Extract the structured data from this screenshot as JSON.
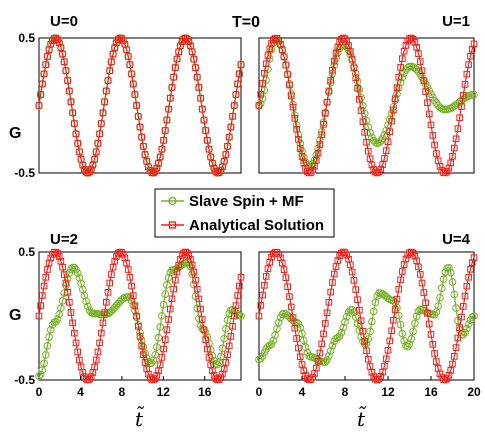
{
  "figure": {
    "ylabel": "G",
    "xlabel": "t̃",
    "annotation": "T=0",
    "legend": {
      "entries": [
        "Slave Spin + MF",
        "Analytical Solution"
      ]
    },
    "colors": {
      "slave_spin": "#77b02a",
      "analytical": "#e8241e"
    }
  },
  "chart_data": [
    {
      "type": "line",
      "title": "U=0",
      "ylabel": "G",
      "xlim": [
        0,
        19.5
      ],
      "ylim": [
        -0.5,
        0.5
      ],
      "yticks": [
        -0.5,
        0.5
      ],
      "ytick_labels": [
        "-0.5",
        "0.5"
      ],
      "xticks": [],
      "xtick_labels": [],
      "series": [
        {
          "name": "Slave Spin + MF",
          "analytic": "0.5*sin(t)",
          "mode": "exact"
        },
        {
          "name": "Analytical Solution",
          "analytic": "0.5*sin(t)"
        }
      ]
    },
    {
      "type": "line",
      "title": "U=1",
      "ylabel": "",
      "xlim": [
        0,
        20
      ],
      "ylim": [
        -0.5,
        0.5
      ],
      "yticks": [],
      "ytick_labels": [],
      "xticks": [],
      "xtick_labels": [],
      "series": [
        {
          "name": "Slave Spin + MF",
          "x": [
            0,
            1.57,
            4.71,
            7.85,
            11.0,
            14.1,
            17.3,
            20.0
          ],
          "y": [
            0,
            0.49,
            -0.45,
            0.45,
            -0.28,
            0.29,
            -0.03,
            0.08
          ]
        },
        {
          "name": "Analytical Solution",
          "analytic": "0.5*sin(t)"
        }
      ]
    },
    {
      "type": "line",
      "title": "U=2",
      "ylabel": "G",
      "xlim": [
        0,
        19.5
      ],
      "ylim": [
        -0.5,
        0.5
      ],
      "yticks": [
        -0.5,
        0.5
      ],
      "ytick_labels": [
        "-0.5",
        "0.5"
      ],
      "xticks": [
        0,
        4,
        8,
        12,
        16
      ],
      "xtick_labels": [
        "0",
        "4",
        "8",
        "12",
        "16"
      ],
      "series": [
        {
          "name": "Slave Spin + MF",
          "x": [
            0,
            1.5,
            3.3,
            5.2,
            6.3,
            8.6,
            10.8,
            12.9,
            14.4,
            15.8,
            17.2,
            18.6,
            19.5
          ],
          "y": [
            -0.47,
            -0.05,
            0.38,
            0.02,
            0.01,
            0.15,
            -0.37,
            0.36,
            0.42,
            -0.1,
            -0.38,
            0.05,
            0.0
          ]
        },
        {
          "name": "Analytical Solution",
          "analytic": "0.5*sin(t)"
        }
      ]
    },
    {
      "type": "line",
      "title": "U=4",
      "ylabel": "",
      "xlim": [
        0,
        20
      ],
      "ylim": [
        -0.5,
        0.5
      ],
      "yticks": [],
      "ytick_labels": [],
      "xticks": [
        0,
        4,
        8,
        12,
        16,
        20
      ],
      "xtick_labels": [
        "0",
        "4",
        "8",
        "12",
        "16",
        "20"
      ],
      "series": [
        {
          "name": "Slave Spin + MF",
          "x": [
            0,
            1.0,
            2.3,
            3.5,
            4.8,
            6.1,
            7.3,
            8.6,
            9.9,
            11.2,
            12.5,
            13.8,
            15.0,
            16.3,
            17.6,
            18.9,
            20.0
          ],
          "y": [
            -0.34,
            -0.23,
            0.02,
            -0.05,
            -0.32,
            -0.36,
            -0.17,
            0.05,
            -0.22,
            0.18,
            0.12,
            -0.24,
            0.05,
            0.01,
            0.38,
            -0.15,
            0.0
          ]
        },
        {
          "name": "Analytical Solution",
          "analytic": "0.5*sin(t)"
        }
      ]
    }
  ]
}
